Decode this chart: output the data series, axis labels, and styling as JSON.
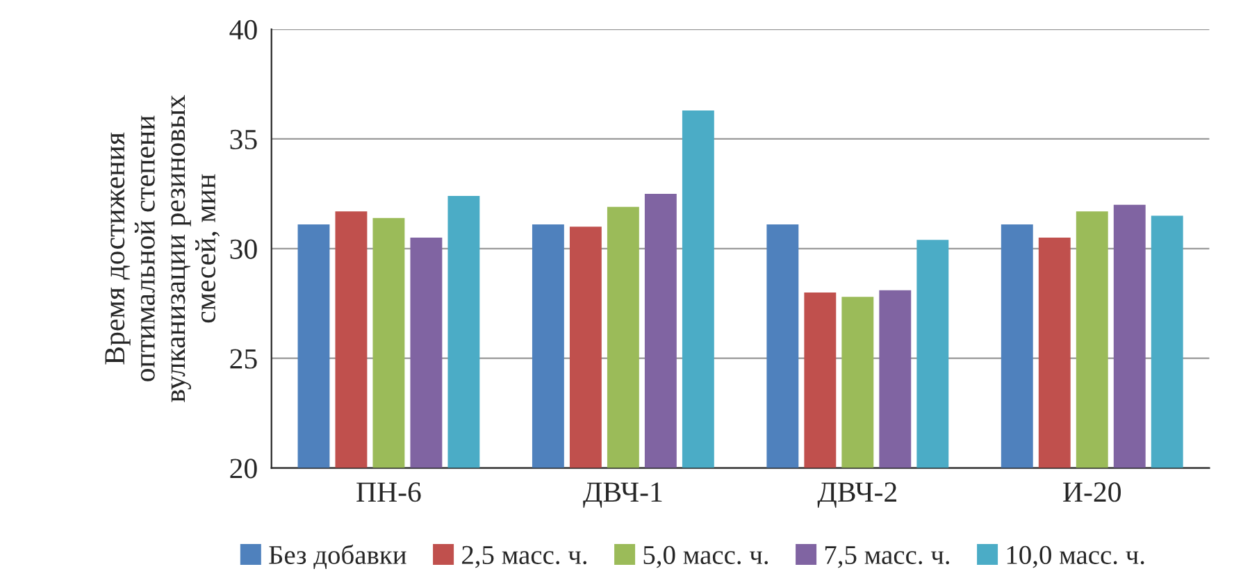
{
  "chart_data": {
    "type": "bar",
    "ylabel": "Время достижения\nоптимальной степени\nвулканизации резиновых\nсмесей, мин",
    "categories": [
      "ПН-6",
      "ДВЧ-1",
      "ДВЧ-2",
      "И-20"
    ],
    "series": [
      {
        "name": "Без добавки",
        "color": "#4f81bd",
        "values": [
          31.1,
          31.1,
          31.1,
          31.1
        ]
      },
      {
        "name": "2,5 масс. ч.",
        "color": "#c0504d",
        "values": [
          31.7,
          31.0,
          28.0,
          30.5
        ]
      },
      {
        "name": "5,0 масс. ч.",
        "color": "#9bbb59",
        "values": [
          31.4,
          31.9,
          27.8,
          31.7
        ]
      },
      {
        "name": "7,5 масс. ч.",
        "color": "#8064a2",
        "values": [
          30.5,
          32.5,
          28.1,
          32.0
        ]
      },
      {
        "name": "10,0 масс. ч.",
        "color": "#4bacc6",
        "values": [
          32.4,
          36.3,
          30.4,
          31.5
        ]
      }
    ],
    "ylim": [
      20,
      40
    ],
    "yticks": [
      20,
      25,
      30,
      35,
      40
    ],
    "grid": "y",
    "legend": "bottom"
  }
}
